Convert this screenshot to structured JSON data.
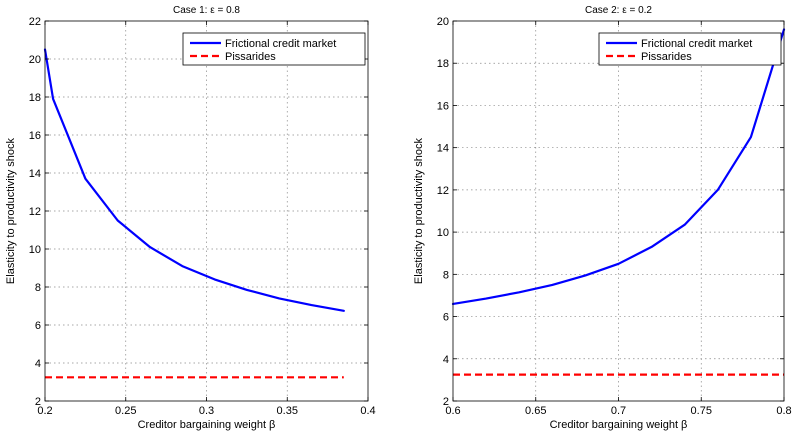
{
  "chart_data": [
    {
      "type": "line",
      "title": "Case 1: ε = 0.8",
      "xlabel": "Creditor bargaining weight β",
      "ylabel": "Elasticity to productivity shock",
      "xlim": [
        0.2,
        0.4
      ],
      "ylim": [
        2,
        22
      ],
      "xticks": [
        0.2,
        0.25,
        0.3,
        0.35,
        0.4
      ],
      "xtick_labels": [
        "0.2",
        "0.25",
        "0.3",
        "0.35",
        "0.4"
      ],
      "yticks": [
        2,
        4,
        6,
        8,
        10,
        12,
        14,
        16,
        18,
        20,
        22
      ],
      "grid": true,
      "legend_position": "top-right",
      "series": [
        {
          "name": "Frictional credit market",
          "color": "#0000ff",
          "style": "solid",
          "x": [
            0.2,
            0.205,
            0.225,
            0.245,
            0.265,
            0.285,
            0.305,
            0.325,
            0.345,
            0.365,
            0.385
          ],
          "y": [
            20.5,
            17.9,
            13.7,
            11.5,
            10.1,
            9.1,
            8.4,
            7.85,
            7.4,
            7.05,
            6.75
          ]
        },
        {
          "name": "Pissarides",
          "color": "#ff0000",
          "style": "dashed",
          "x": [
            0.2,
            0.385
          ],
          "y": [
            3.25,
            3.25
          ]
        }
      ]
    },
    {
      "type": "line",
      "title": "Case 2: ε = 0.2",
      "xlabel": "Creditor bargaining weight β",
      "ylabel": "Elasticity to productivity shock",
      "xlim": [
        0.6,
        0.8
      ],
      "ylim": [
        2,
        20
      ],
      "xticks": [
        0.6,
        0.65,
        0.7,
        0.75,
        0.8
      ],
      "xtick_labels": [
        "0.6",
        "0.65",
        "0.7",
        "0.75",
        "0.8"
      ],
      "yticks": [
        2,
        4,
        6,
        8,
        10,
        12,
        14,
        16,
        18,
        20
      ],
      "grid": true,
      "legend_position": "top-right",
      "series": [
        {
          "name": "Frictional credit market",
          "color": "#0000ff",
          "style": "solid",
          "x": [
            0.6,
            0.62,
            0.64,
            0.66,
            0.68,
            0.7,
            0.72,
            0.74,
            0.76,
            0.78,
            0.8
          ],
          "y": [
            6.6,
            6.85,
            7.15,
            7.5,
            7.95,
            8.5,
            9.3,
            10.35,
            12.0,
            14.5,
            19.6
          ]
        },
        {
          "name": "Pissarides",
          "color": "#ff0000",
          "style": "dashed",
          "x": [
            0.6,
            0.8
          ],
          "y": [
            3.25,
            3.25
          ]
        }
      ]
    }
  ]
}
